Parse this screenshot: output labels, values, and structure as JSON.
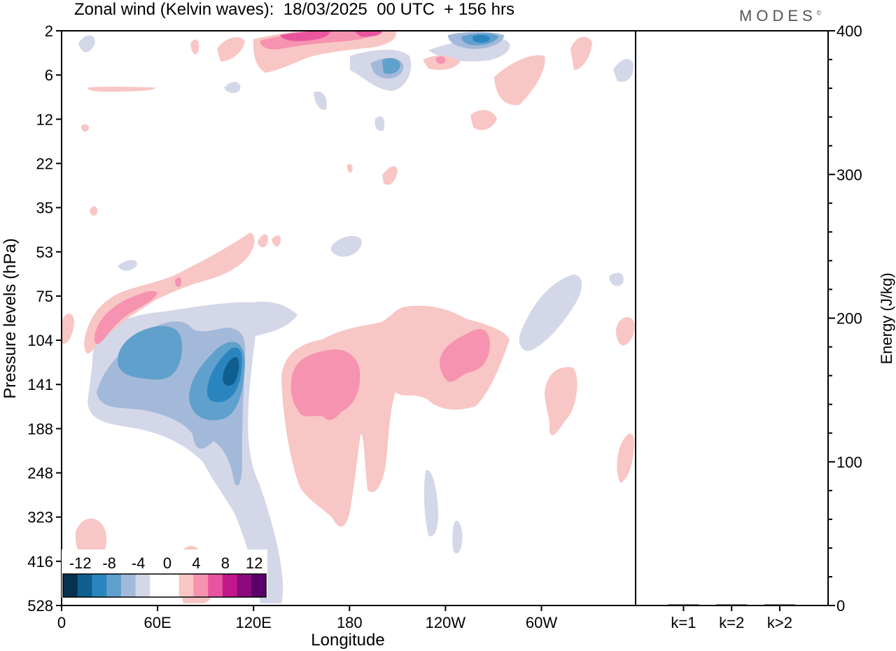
{
  "title": "Zonal wind (Kelvin waves):  18/03/2025  00 UTC  + 156 hrs",
  "brand": "MODES",
  "brand_mark": "©",
  "chart_data": [
    {
      "type": "heatmap",
      "variable": "Zonal wind (Kelvin waves)",
      "xlabel": "Longitude",
      "ylabel": "Pressure levels (hPa)",
      "x_ticks": [
        "0",
        "60E",
        "120E",
        "180",
        "120W",
        "60W"
      ],
      "x_tick_degrees": [
        0,
        60,
        120,
        180,
        240,
        300
      ],
      "xlim": [
        0,
        360
      ],
      "y_ticks": [
        "2",
        "6",
        "12",
        "22",
        "35",
        "53",
        "75",
        "104",
        "141",
        "188",
        "248",
        "323",
        "416",
        "528"
      ],
      "y_axis_reversed": true,
      "colorbar": {
        "labels": [
          "-12",
          "-8",
          "-4",
          "0",
          "4",
          "8",
          "12"
        ],
        "colors": [
          "#08304f",
          "#0e5f8f",
          "#2a85bf",
          "#5fa0cc",
          "#a3b9d9",
          "#d3d7e8",
          "#ffffff",
          "#ffffff",
          "#f8c6c4",
          "#f693b0",
          "#e8559e",
          "#c2178a",
          "#8a0a7c",
          "#5a0068"
        ],
        "placement": "bottom-left"
      },
      "features": [
        {
          "sign": "negative",
          "min": -12,
          "lon_range": [
            95,
            115
          ],
          "pressure_range": [
            104,
            188
          ]
        },
        {
          "sign": "negative",
          "min": -8,
          "lon_range": [
            45,
            70
          ],
          "pressure_range": [
            104,
            141
          ]
        },
        {
          "sign": "positive",
          "max": 8,
          "lon_range": [
            145,
            185
          ],
          "pressure_range": [
            120,
            188
          ]
        },
        {
          "sign": "positive",
          "max": 8,
          "lon_range": [
            240,
            265
          ],
          "pressure_range": [
            104,
            141
          ]
        },
        {
          "sign": "positive",
          "max": 8,
          "lon_range": [
            20,
            50
          ],
          "pressure_range": [
            75,
            104
          ]
        },
        {
          "sign": "positive",
          "max": 8,
          "lon_range": [
            120,
            170
          ],
          "pressure_range": [
            2,
            4
          ]
        },
        {
          "sign": "negative",
          "max": -8,
          "lon_range": [
            250,
            285
          ],
          "pressure_range": [
            2,
            4
          ]
        }
      ]
    },
    {
      "type": "bar",
      "categories": [
        "k=1",
        "k=2",
        "k>2"
      ],
      "values": [
        0.3,
        0.2,
        0.2
      ],
      "ylabel": "Energy (J/kg)",
      "ylim": [
        0,
        400
      ],
      "y_ticks": [
        "0",
        "100",
        "200",
        "300",
        "400"
      ],
      "y_axis_side": "right"
    }
  ]
}
